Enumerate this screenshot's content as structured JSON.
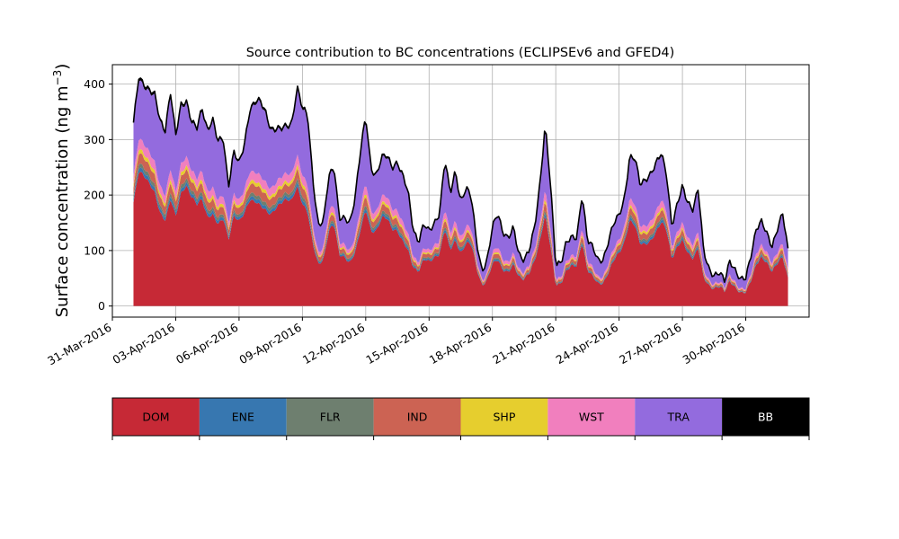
{
  "chart_data": {
    "type": "area",
    "stacked": true,
    "title": "Source contribution to BC concentrations (ECLIPSEv6 and GFED4)",
    "ylabel": "Surface concentration (ng m",
    "ylabel_sup": "−3",
    "ylabel_close": ")",
    "xlabel": "",
    "grid": true,
    "xlim": [
      "2016-03-31",
      "2016-05-03"
    ],
    "ylim": [
      -20,
      435
    ],
    "x_start": "2016-04-01",
    "x_end": "2016-05-02",
    "y_ticks": [
      0,
      100,
      200,
      300,
      400
    ],
    "y_tick_labels": [
      "0",
      "100",
      "200",
      "300",
      "400"
    ],
    "x_ticks": [
      "2016-03-31",
      "2016-04-03",
      "2016-04-06",
      "2016-04-09",
      "2016-04-12",
      "2016-04-15",
      "2016-04-18",
      "2016-04-21",
      "2016-04-24",
      "2016-04-27",
      "2016-04-30"
    ],
    "x_tick_labels": [
      "31-Mar-2016",
      "03-Apr-2016",
      "06-Apr-2016",
      "09-Apr-2016",
      "12-Apr-2016",
      "15-Apr-2016",
      "18-Apr-2016",
      "21-Apr-2016",
      "24-Apr-2016",
      "27-Apr-2016",
      "30-Apr-2016"
    ],
    "total_knots": [
      [
        "2016-04-01",
        328
      ],
      [
        "2016-04-01T06:00",
        412
      ],
      [
        "2016-04-01T12:00",
        402
      ],
      [
        "2016-04-02",
        380
      ],
      [
        "2016-04-02T06:00",
        335
      ],
      [
        "2016-04-02T12:00",
        318
      ],
      [
        "2016-04-02T18:00",
        388
      ],
      [
        "2016-04-03",
        305
      ],
      [
        "2016-04-03T06:00",
        362
      ],
      [
        "2016-04-03T12:00",
        372
      ],
      [
        "2016-04-03T18:00",
        335
      ],
      [
        "2016-04-04",
        318
      ],
      [
        "2016-04-04T06:00",
        356
      ],
      [
        "2016-04-04T12:00",
        320
      ],
      [
        "2016-04-04T18:00",
        338
      ],
      [
        "2016-04-05",
        295
      ],
      [
        "2016-04-05T06:00",
        302
      ],
      [
        "2016-04-05T12:00",
        218
      ],
      [
        "2016-04-05T18:00",
        280
      ],
      [
        "2016-04-06",
        255
      ],
      [
        "2016-04-06T06:00",
        290
      ],
      [
        "2016-04-06T12:00",
        355
      ],
      [
        "2016-04-06T18:00",
        370
      ],
      [
        "2016-04-07",
        368
      ],
      [
        "2016-04-07T06:00",
        350
      ],
      [
        "2016-04-07T12:00",
        322
      ],
      [
        "2016-04-08",
        318
      ],
      [
        "2016-04-08T06:00",
        325
      ],
      [
        "2016-04-08T12:00",
        332
      ],
      [
        "2016-04-08T18:00",
        395
      ],
      [
        "2016-04-09",
        355
      ],
      [
        "2016-04-09T06:00",
        345
      ],
      [
        "2016-04-09T12:00",
        230
      ],
      [
        "2016-04-09T18:00",
        145
      ],
      [
        "2016-04-10",
        150
      ],
      [
        "2016-04-10T06:00",
        235
      ],
      [
        "2016-04-10T12:00",
        255
      ],
      [
        "2016-04-10T18:00",
        158
      ],
      [
        "2016-04-11",
        155
      ],
      [
        "2016-04-11T06:00",
        150
      ],
      [
        "2016-04-11T12:00",
        200
      ],
      [
        "2016-04-11T18:00",
        280
      ],
      [
        "2016-04-12",
        340
      ],
      [
        "2016-04-12T06:00",
        248
      ],
      [
        "2016-04-12T12:00",
        238
      ],
      [
        "2016-04-12T18:00",
        268
      ],
      [
        "2016-04-13",
        270
      ],
      [
        "2016-04-13T06:00",
        250
      ],
      [
        "2016-04-13T12:00",
        262
      ],
      [
        "2016-04-13T18:00",
        235
      ],
      [
        "2016-04-14",
        205
      ],
      [
        "2016-04-14T06:00",
        138
      ],
      [
        "2016-04-14T12:00",
        118
      ],
      [
        "2016-04-14T18:00",
        148
      ],
      [
        "2016-04-15",
        132
      ],
      [
        "2016-04-15T06:00",
        150
      ],
      [
        "2016-04-15T12:00",
        170
      ],
      [
        "2016-04-15T18:00",
        265
      ],
      [
        "2016-04-16",
        200
      ],
      [
        "2016-04-16T06:00",
        245
      ],
      [
        "2016-04-16T12:00",
        190
      ],
      [
        "2016-04-16T18:00",
        212
      ],
      [
        "2016-04-17",
        195
      ],
      [
        "2016-04-17T06:00",
        118
      ],
      [
        "2016-04-17T12:00",
        65
      ],
      [
        "2016-04-17T18:00",
        80
      ],
      [
        "2016-04-18",
        140
      ],
      [
        "2016-04-18T06:00",
        170
      ],
      [
        "2016-04-18T12:00",
        135
      ],
      [
        "2016-04-18T18:00",
        120
      ],
      [
        "2016-04-19",
        140
      ],
      [
        "2016-04-19T06:00",
        95
      ],
      [
        "2016-04-19T12:00",
        85
      ],
      [
        "2016-04-19T18:00",
        100
      ],
      [
        "2016-04-20",
        140
      ],
      [
        "2016-04-20T06:00",
        220
      ],
      [
        "2016-04-20T12:00",
        330
      ],
      [
        "2016-04-20T18:00",
        220
      ],
      [
        "2016-04-21",
        72
      ],
      [
        "2016-04-21T06:00",
        80
      ],
      [
        "2016-04-21T12:00",
        118
      ],
      [
        "2016-04-21T18:00",
        122
      ],
      [
        "2016-04-22",
        120
      ],
      [
        "2016-04-22T06:00",
        205
      ],
      [
        "2016-04-22T12:00",
        122
      ],
      [
        "2016-04-22T18:00",
        105
      ],
      [
        "2016-04-23",
        80
      ],
      [
        "2016-04-23T06:00",
        85
      ],
      [
        "2016-04-23T12:00",
        120
      ],
      [
        "2016-04-23T18:00",
        148
      ],
      [
        "2016-04-24",
        162
      ],
      [
        "2016-04-24T06:00",
        195
      ],
      [
        "2016-04-24T12:00",
        270
      ],
      [
        "2016-04-24T18:00",
        265
      ],
      [
        "2016-04-25",
        218
      ],
      [
        "2016-04-25T06:00",
        230
      ],
      [
        "2016-04-25T12:00",
        240
      ],
      [
        "2016-04-25T18:00",
        255
      ],
      [
        "2016-04-26",
        275
      ],
      [
        "2016-04-26T06:00",
        240
      ],
      [
        "2016-04-26T12:00",
        145
      ],
      [
        "2016-04-26T18:00",
        180
      ],
      [
        "2016-04-27",
        215
      ],
      [
        "2016-04-27T06:00",
        190
      ],
      [
        "2016-04-27T12:00",
        175
      ],
      [
        "2016-04-27T18:00",
        210
      ],
      [
        "2016-04-28",
        100
      ],
      [
        "2016-04-28T06:00",
        70
      ],
      [
        "2016-04-28T12:00",
        55
      ],
      [
        "2016-04-28T18:00",
        58
      ],
      [
        "2016-04-29",
        45
      ],
      [
        "2016-04-29T06:00",
        85
      ],
      [
        "2016-04-29T12:00",
        65
      ],
      [
        "2016-04-29T18:00",
        45
      ],
      [
        "2016-04-30",
        50
      ],
      [
        "2016-04-30T06:00",
        95
      ],
      [
        "2016-04-30T12:00",
        140
      ],
      [
        "2016-04-30T18:00",
        150
      ],
      [
        "2016-05-01",
        130
      ],
      [
        "2016-05-01T06:00",
        110
      ],
      [
        "2016-05-01T12:00",
        140
      ],
      [
        "2016-05-01T18:00",
        165
      ],
      [
        "2016-05-02",
        100
      ]
    ],
    "series": [
      {
        "name": "DOM",
        "color": "#c62936"
      },
      {
        "name": "ENE",
        "color": "#3777b0"
      },
      {
        "name": "FLR",
        "color": "#6e7f6f"
      },
      {
        "name": "IND",
        "color": "#cc6353"
      },
      {
        "name": "SHP",
        "color": "#e6ce2e"
      },
      {
        "name": "WST",
        "color": "#f17fbe"
      },
      {
        "name": "TRA",
        "color": "#936bde"
      },
      {
        "name": "BB",
        "color": "#000000"
      }
    ],
    "total_line_color": "#000000"
  }
}
